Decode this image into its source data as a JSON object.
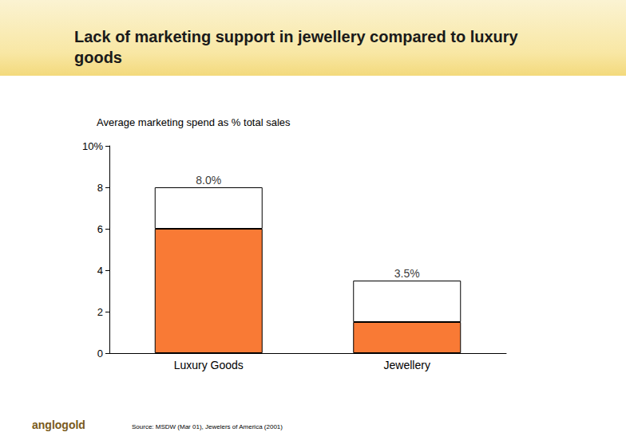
{
  "chart_data": {
    "type": "bar",
    "title": "Lack of marketing support in jewellery compared to luxury goods",
    "y_label": "Average marketing spend as % total sales",
    "categories": [
      "Luxury Goods",
      "Jewellery"
    ],
    "series": [
      {
        "color": "#f97a35",
        "values": [
          6.0,
          1.5
        ]
      },
      {
        "color": "#ffffff",
        "values": [
          2.0,
          2.0
        ]
      }
    ],
    "stacked": true,
    "totals": [
      8.0,
      3.5
    ],
    "total_labels": [
      "8.0%",
      "3.5%"
    ],
    "ylim": [
      0,
      10
    ],
    "yticks": [
      0,
      2,
      4,
      6,
      8,
      {
        "value": 10,
        "label": "10%"
      }
    ],
    "grid": false,
    "source": "Source: MSDW (Mar 01), Jewelers of America (2001)",
    "logo": "anglogold"
  }
}
